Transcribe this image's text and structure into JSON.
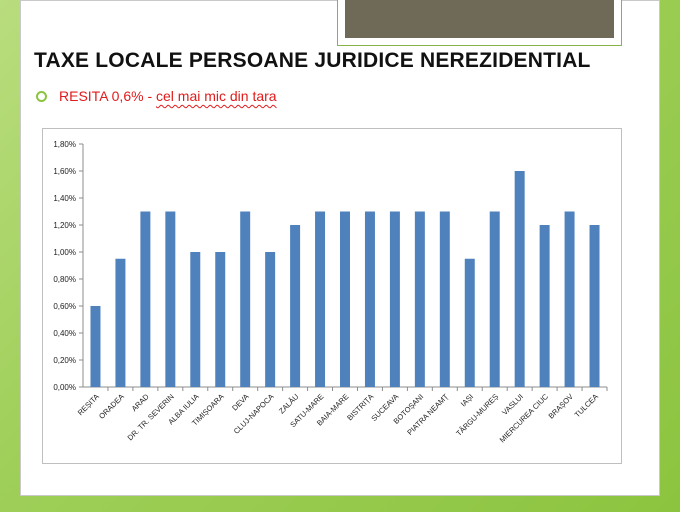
{
  "slide": {
    "title": "TAXE LOCALE PERSOANE  JURIDICE NEREZIDENTIAL",
    "bullet_prefix": "RESITA 0,6% - ",
    "bullet_emphasis": "cel mai mic din tara",
    "colors": {
      "accent": "#8cc43f",
      "highlight": "#e01b1b",
      "bar": "#4f81bd"
    }
  },
  "chart_data": {
    "type": "bar",
    "title": "",
    "xlabel": "",
    "ylabel": "",
    "ylim": [
      0,
      1.8
    ],
    "ytick_labels": [
      "0,00%",
      "0,20%",
      "0,40%",
      "0,60%",
      "0,80%",
      "1,00%",
      "1,20%",
      "1,40%",
      "1,60%",
      "1,80%"
    ],
    "grid": false,
    "legend": "none",
    "categories": [
      "REȘITA",
      "ORADEA",
      "ARAD",
      "DR. TR. SEVERIN",
      "ALBA IULIA",
      "TIMIȘOARA",
      "DEVA",
      "CLUJ-NAPOCA",
      "ZALĂU",
      "SATU-MARE",
      "BAIA-MARE",
      "BISTRIȚA",
      "SUCEAVA",
      "BOTOȘANI",
      "PIATRA NEAMȚ",
      "IAȘI",
      "TÂRGU-MUREȘ",
      "VASLUI",
      "MIERCUREA CIUC",
      "BRAȘOV",
      "TULCEA"
    ],
    "series": [
      {
        "values": [
          0.6,
          0.95,
          1.3,
          1.3,
          1.0,
          1.0,
          1.3,
          1.0,
          1.2,
          1.3,
          1.3,
          1.3,
          1.3,
          1.3,
          1.3,
          0.95,
          1.3,
          1.6,
          1.2,
          1.3,
          1.2
        ]
      }
    ]
  }
}
